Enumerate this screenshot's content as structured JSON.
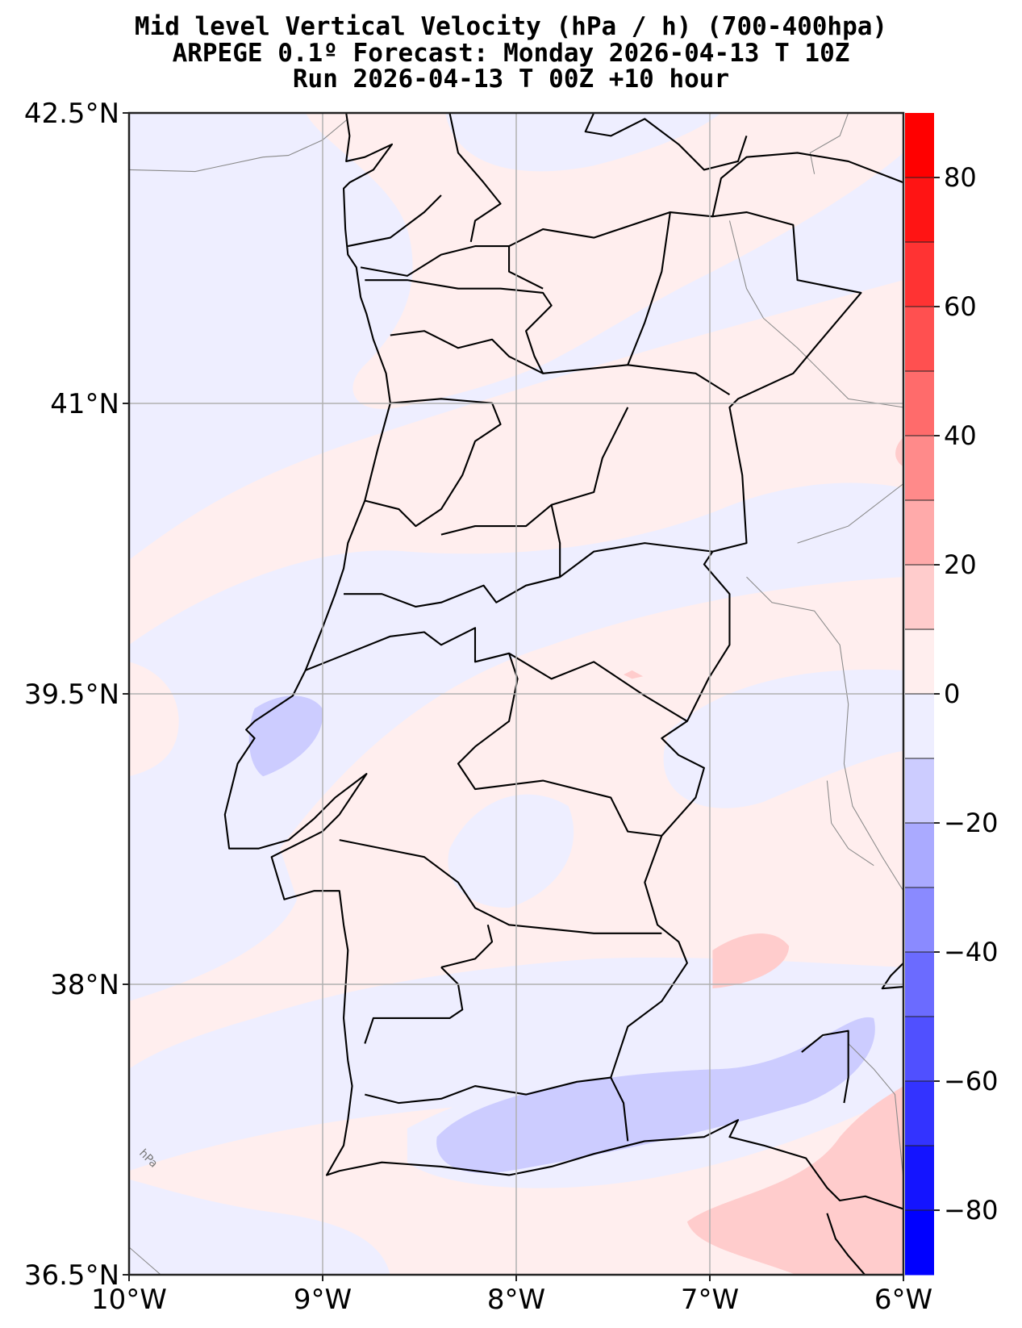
{
  "title": {
    "line1": "Mid level Vertical Velocity (hPa / h)  (700-400hpa)",
    "line2": "ARPEGE 0.1º Forecast: Monday 2026-04-13 T 10Z",
    "line3": "Run 2026-04-13 T 00Z +10 hour"
  },
  "map": {
    "lon_range": [
      -10,
      -6
    ],
    "lat_range": [
      36.5,
      42.5
    ],
    "lon_ticks": [
      {
        "value": -10,
        "label": "10°W"
      },
      {
        "value": -9,
        "label": "9°W"
      },
      {
        "value": -8,
        "label": "8°W"
      },
      {
        "value": -7,
        "label": "7°W"
      },
      {
        "value": -6,
        "label": "6°W"
      }
    ],
    "lat_ticks": [
      {
        "value": 42.5,
        "label": "42.5°N"
      },
      {
        "value": 41,
        "label": "41°N"
      },
      {
        "value": 39.5,
        "label": "39.5°N"
      },
      {
        "value": 38,
        "label": "38°N"
      },
      {
        "value": 36.5,
        "label": "36.5°N"
      }
    ],
    "contour_label": "hPa"
  },
  "colorbar": {
    "range": [
      -90,
      90
    ],
    "levels": [
      -90,
      -80,
      -70,
      -60,
      -50,
      -40,
      -30,
      -20,
      -10,
      0,
      10,
      20,
      30,
      40,
      50,
      60,
      70,
      80,
      90
    ],
    "colors": [
      "#0000ff",
      "#1414ff",
      "#3333ff",
      "#5050ff",
      "#6b6bff",
      "#8a8aff",
      "#aaaaff",
      "#ccccff",
      "#eeeeff",
      "#ffeeee",
      "#ffcccc",
      "#ffaaaa",
      "#ff8a8a",
      "#ff6b6b",
      "#ff5050",
      "#ff3333",
      "#ff1414",
      "#ff0000"
    ],
    "ticks": [
      {
        "value": 80,
        "label": "80"
      },
      {
        "value": 60,
        "label": "60"
      },
      {
        "value": 40,
        "label": "40"
      },
      {
        "value": 20,
        "label": "20"
      },
      {
        "value": 0,
        "label": "0"
      },
      {
        "value": -20,
        "label": "−20"
      },
      {
        "value": -40,
        "label": "−40"
      },
      {
        "value": -60,
        "label": "−60"
      },
      {
        "value": -80,
        "label": "−80"
      }
    ]
  }
}
